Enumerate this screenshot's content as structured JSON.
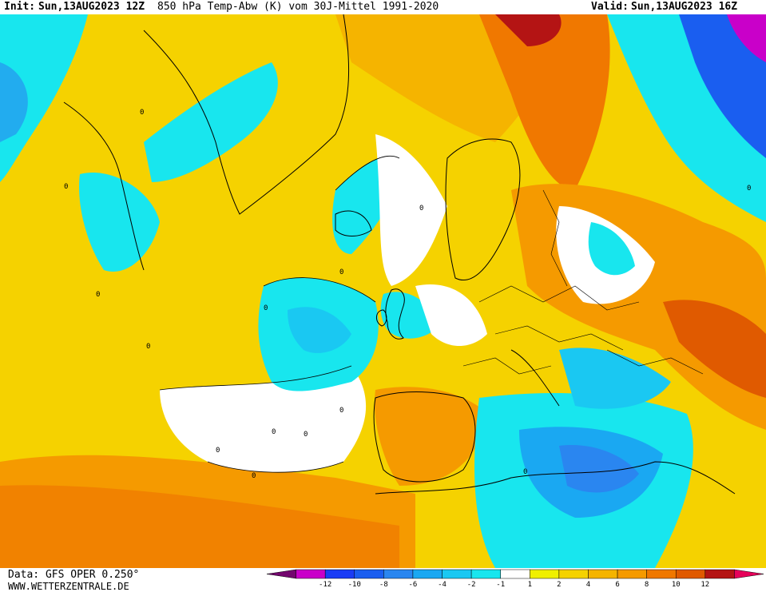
{
  "header": {
    "init_label": "Init:",
    "init": "Sun,13AUG2023 12Z",
    "parameter": "850 hPa Temp-Abw (K) vom 30J-Mittel 1991-2020",
    "valid_label": "Valid:",
    "valid": "Sun,13AUG2023 16Z"
  },
  "footer": {
    "data_source": "Data: GFS OPER 0.250°",
    "website": "WWW.WETTERZENTRALE.DE"
  },
  "legend": {
    "colors": [
      "#73066e",
      "#c900c9",
      "#1a3cf5",
      "#1a5ef0",
      "#2a86f0",
      "#1aa8f2",
      "#1ac8f2",
      "#18e6ee",
      "#ffffff",
      "#f0f000",
      "#f5d200",
      "#f5b400",
      "#f59a00",
      "#f07800",
      "#e05a00",
      "#b41414",
      "#e6005a"
    ],
    "ticks": [
      "-12",
      "-10",
      "-8",
      "-6",
      "-4",
      "-2",
      "-1",
      "1",
      "2",
      "4",
      "6",
      "8",
      "10",
      "12"
    ]
  },
  "map": {
    "region": "North Atlantic / Europe / North Africa",
    "contour_labels": [
      "0",
      "0",
      "0",
      "0",
      "0",
      "0",
      "0",
      "0",
      "0",
      "0",
      "0",
      "0",
      "0",
      "0"
    ]
  }
}
